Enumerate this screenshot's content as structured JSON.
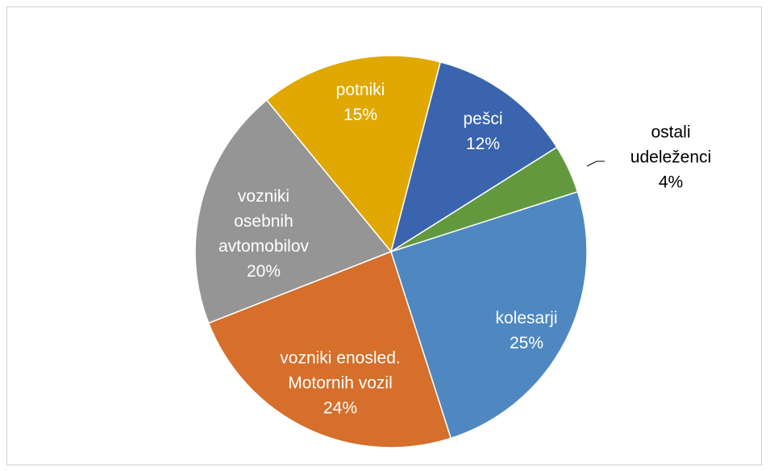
{
  "chart_data": {
    "type": "pie",
    "categories": [
      "pešci",
      "ostali udeleženci",
      "kolesarji",
      "vozniki enosled. Motornih vozil",
      "vozniki osebnih avtomobilov",
      "potniki"
    ],
    "values": [
      12,
      4,
      25,
      24,
      20,
      15
    ],
    "value_labels": [
      "12%",
      "4%",
      "25%",
      "24%",
      "20%",
      "15%"
    ],
    "colors": [
      "#3a64ae",
      "#62993e",
      "#4f88c0",
      "#d56f2b",
      "#959595",
      "#e0a800"
    ]
  }
}
